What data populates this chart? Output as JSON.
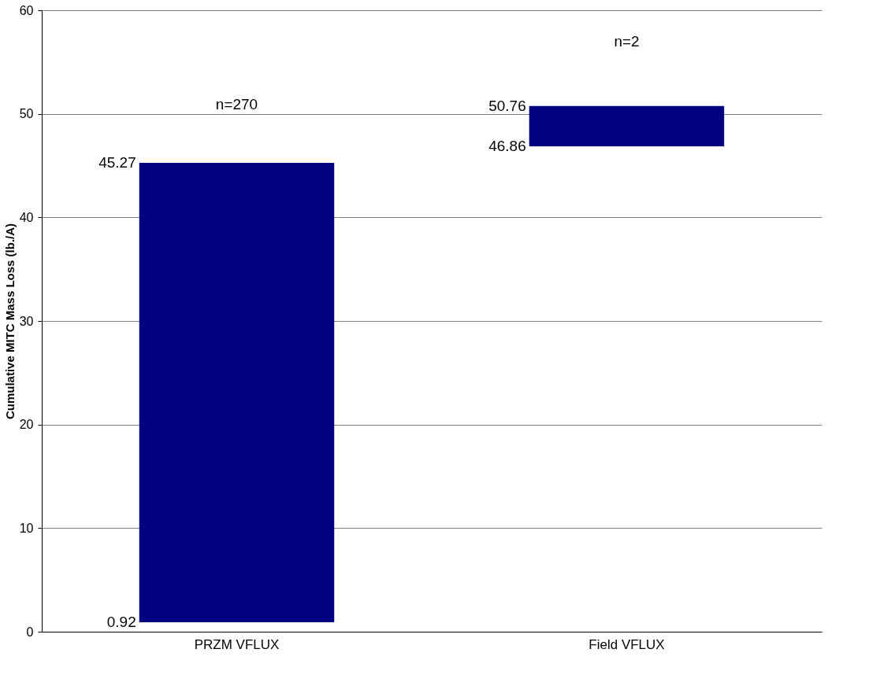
{
  "chart_data": {
    "type": "bar",
    "categories": [
      "PRZM VFLUX",
      "Field VFLUX"
    ],
    "base": [
      0.92,
      46.86
    ],
    "values": [
      44.35,
      3.9
    ],
    "color": "#000080",
    "ylabel": "Cumulative MITC Mass Loss (lb./A)",
    "ylim": [
      0,
      60
    ],
    "yticks": [
      0,
      10,
      20,
      30,
      40,
      50,
      60
    ],
    "grid": "y",
    "annotations": [
      "n=270",
      "n=2",
      "45.27",
      "0.92",
      "50.76",
      "46.86"
    ]
  }
}
